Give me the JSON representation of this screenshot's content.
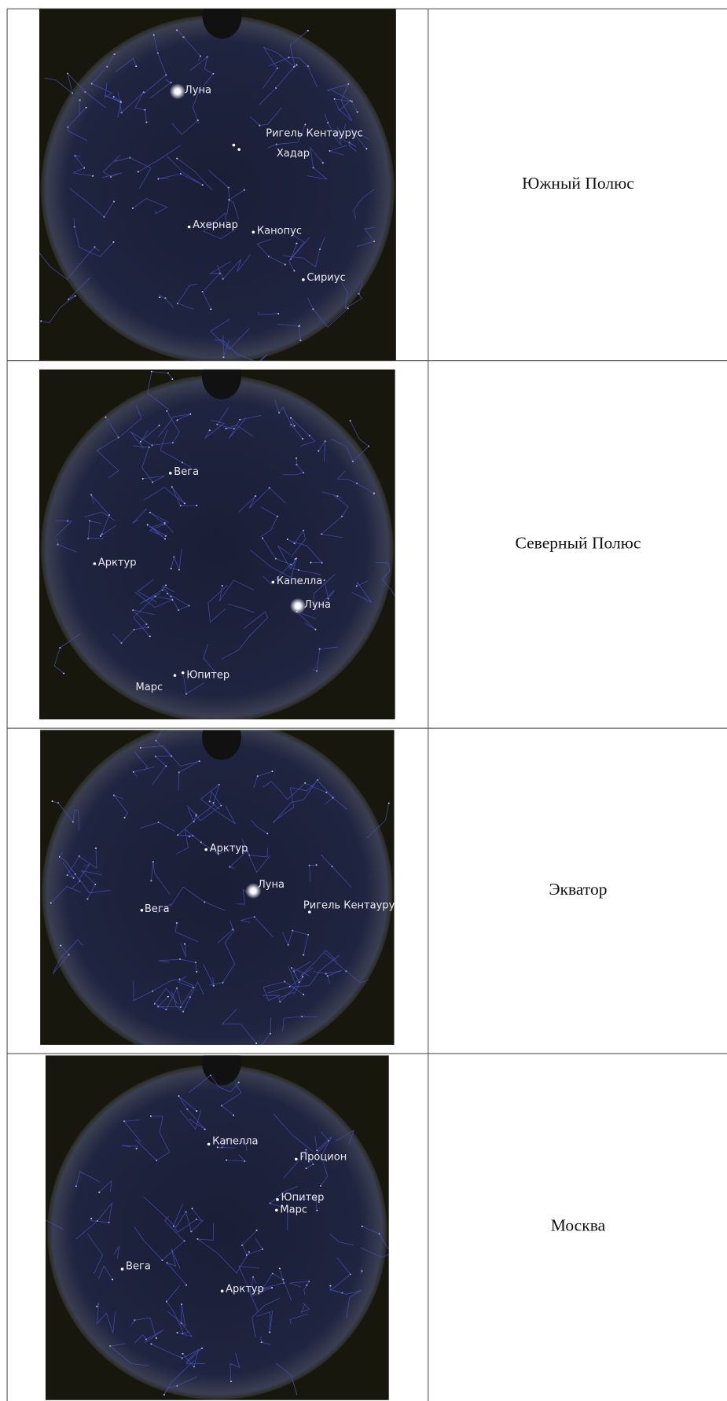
{
  "table": {
    "rows": [
      {
        "image": {
          "labels": [
            "Луна",
            "Ригель Кентаурус",
            "Хадар",
            "Ахернар",
            "Канопус",
            "Сириус"
          ]
        },
        "location": "Южный Полюс"
      },
      {
        "image": {
          "labels": [
            "Вега",
            "Арктур",
            "Капелла",
            "Луна",
            "Юпитер",
            "Марс"
          ]
        },
        "location": "Северный Полюс"
      },
      {
        "image": {
          "labels": [
            "Арктур",
            "Луна",
            "Вега",
            "Ригель Кентаурус"
          ]
        },
        "location": "Экватор"
      },
      {
        "image": {
          "labels": [
            "Капелла",
            "Процион",
            "Юпитер",
            "Марс",
            "Вега",
            "Арктур"
          ]
        },
        "location": "Москва"
      }
    ]
  }
}
